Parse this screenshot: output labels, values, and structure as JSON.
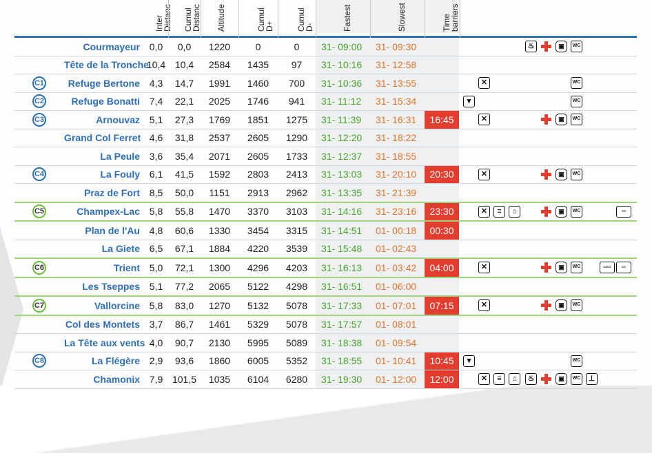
{
  "headers": {
    "inter": "Inter\nDistanc",
    "cumul_dist": "Cumul\nDistanc",
    "altitude": "Altitude",
    "cumul_dplus": "Cumul\nD+",
    "cumul_dminus": "Cumul\nD-",
    "fastest": "Fastest",
    "slowest": "Slowest",
    "barriers": "Time\nbarriers"
  },
  "rows": [
    {
      "cp": "",
      "name": "Courmayeur",
      "inter": "0,0",
      "cumul": "0,0",
      "alt": "1220",
      "dplus": "0",
      "dminus": "0",
      "fast": "31- 09:00",
      "slow": "31- 09:30",
      "barrier": "",
      "green": false,
      "icons": [
        {
          "t": "drink",
          "x": 96,
          "g": "♨"
        },
        {
          "t": "cross",
          "x": 118,
          "g": ""
        },
        {
          "t": "bus",
          "x": 140,
          "g": "▣"
        },
        {
          "t": "wc",
          "x": 162,
          "g": "WC"
        }
      ]
    },
    {
      "cp": "",
      "name": "Tête de la Tronche",
      "inter": "10,4",
      "cumul": "10,4",
      "alt": "2584",
      "dplus": "1435",
      "dminus": "97",
      "fast": "31- 10:16",
      "slow": "31- 12:58",
      "barrier": "",
      "green": false,
      "icons": []
    },
    {
      "cp": "C1",
      "name": "Refuge Bertone",
      "inter": "4,3",
      "cumul": "14,7",
      "alt": "1991",
      "dplus": "1460",
      "dminus": "700",
      "fast": "31- 10:36",
      "slow": "31- 13:55",
      "barrier": "",
      "green": false,
      "icons": [
        {
          "t": "food",
          "x": 28,
          "g": "✕"
        },
        {
          "t": "wc",
          "x": 162,
          "g": "WC"
        }
      ]
    },
    {
      "cp": "C2",
      "name": "Refuge Bonatti",
      "inter": "7,4",
      "cumul": "22,1",
      "alt": "2025",
      "dplus": "1746",
      "dminus": "941",
      "fast": "31- 11:12",
      "slow": "31- 15:34",
      "barrier": "",
      "green": false,
      "icons": [
        {
          "t": "cup",
          "x": 6,
          "g": "▾"
        },
        {
          "t": "wc",
          "x": 162,
          "g": "WC"
        }
      ]
    },
    {
      "cp": "C3",
      "name": "Arnouvaz",
      "inter": "5,1",
      "cumul": "27,3",
      "alt": "1769",
      "dplus": "1851",
      "dminus": "1275",
      "fast": "31- 11:39",
      "slow": "31- 16:31",
      "barrier": "16:45",
      "green": false,
      "icons": [
        {
          "t": "food",
          "x": 28,
          "g": "✕"
        },
        {
          "t": "cross",
          "x": 118,
          "g": ""
        },
        {
          "t": "bus",
          "x": 140,
          "g": "▣"
        },
        {
          "t": "wc",
          "x": 162,
          "g": "WC"
        }
      ]
    },
    {
      "cp": "",
      "name": "Grand Col Ferret",
      "inter": "4,6",
      "cumul": "31,8",
      "alt": "2537",
      "dplus": "2605",
      "dminus": "1290",
      "fast": "31- 12:20",
      "slow": "31- 18:22",
      "barrier": "",
      "green": false,
      "icons": []
    },
    {
      "cp": "",
      "name": "La Peule",
      "inter": "3,6",
      "cumul": "35,4",
      "alt": "2071",
      "dplus": "2605",
      "dminus": "1733",
      "fast": "31- 12:37",
      "slow": "31- 18:55",
      "barrier": "",
      "green": false,
      "icons": []
    },
    {
      "cp": "C4",
      "name": "La Fouly",
      "inter": "6,1",
      "cumul": "41,5",
      "alt": "1592",
      "dplus": "2803",
      "dminus": "2413",
      "fast": "31- 13:03",
      "slow": "31- 20:10",
      "barrier": "20:30",
      "green": false,
      "icons": [
        {
          "t": "food",
          "x": 28,
          "g": "✕"
        },
        {
          "t": "cross",
          "x": 118,
          "g": ""
        },
        {
          "t": "bus",
          "x": 140,
          "g": "▣"
        },
        {
          "t": "wc",
          "x": 162,
          "g": "WC"
        }
      ]
    },
    {
      "cp": "",
      "name": "Praz de Fort",
      "inter": "8,5",
      "cumul": "50,0",
      "alt": "1151",
      "dplus": "2913",
      "dminus": "2962",
      "fast": "31- 13:35",
      "slow": "31- 21:39",
      "barrier": "",
      "green": false,
      "icons": []
    },
    {
      "cp": "C5",
      "name": "Champex-Lac",
      "inter": "5,8",
      "cumul": "55,8",
      "alt": "1470",
      "dplus": "3370",
      "dminus": "3103",
      "fast": "31- 14:16",
      "slow": "31- 23:16",
      "barrier": "23:30",
      "green": true,
      "icons": [
        {
          "t": "food",
          "x": 28,
          "g": "✕"
        },
        {
          "t": "plate",
          "x": 50,
          "g": "≡"
        },
        {
          "t": "tent",
          "x": 72,
          "g": "⌂"
        },
        {
          "t": "cross",
          "x": 118,
          "g": ""
        },
        {
          "t": "bus",
          "x": 140,
          "g": "▣"
        },
        {
          "t": "wc",
          "x": 162,
          "g": "WC"
        },
        {
          "t": "bag",
          "x": 228,
          "g": "▭"
        }
      ]
    },
    {
      "cp": "",
      "name": "Plan de l'Au",
      "inter": "4,8",
      "cumul": "60,6",
      "alt": "1330",
      "dplus": "3454",
      "dminus": "3315",
      "fast": "31- 14:51",
      "slow": "01- 00:18",
      "barrier": "00:30",
      "green": false,
      "icons": []
    },
    {
      "cp": "",
      "name": "La Giete",
      "inter": "6,5",
      "cumul": "67,1",
      "alt": "1884",
      "dplus": "4220",
      "dminus": "3539",
      "fast": "31- 15:48",
      "slow": "01- 02:43",
      "barrier": "",
      "green": false,
      "icons": []
    },
    {
      "cp": "C6",
      "name": "Trient",
      "inter": "5,0",
      "cumul": "72,1",
      "alt": "1300",
      "dplus": "4296",
      "dminus": "4203",
      "fast": "31- 16:13",
      "slow": "01- 03:42",
      "barrier": "04:00",
      "green": true,
      "icons": [
        {
          "t": "food",
          "x": 28,
          "g": "✕"
        },
        {
          "t": "cross",
          "x": 118,
          "g": ""
        },
        {
          "t": "bus",
          "x": 140,
          "g": "▣"
        },
        {
          "t": "wc",
          "x": 162,
          "g": "WC"
        },
        {
          "t": "bagwide",
          "x": 204,
          "g": "▭▭"
        },
        {
          "t": "bag",
          "x": 228,
          "g": "▭"
        }
      ]
    },
    {
      "cp": "",
      "name": "Les Tseppes",
      "inter": "5,1",
      "cumul": "77,2",
      "alt": "2065",
      "dplus": "5122",
      "dminus": "4298",
      "fast": "31- 16:51",
      "slow": "01- 06:00",
      "barrier": "",
      "green": false,
      "icons": []
    },
    {
      "cp": "C7",
      "name": "Vallorcine",
      "inter": "5,8",
      "cumul": "83,0",
      "alt": "1270",
      "dplus": "5132",
      "dminus": "5078",
      "fast": "31- 17:33",
      "slow": "01- 07:01",
      "barrier": "07:15",
      "green": true,
      "icons": [
        {
          "t": "food",
          "x": 28,
          "g": "✕"
        },
        {
          "t": "cross",
          "x": 118,
          "g": ""
        },
        {
          "t": "bus",
          "x": 140,
          "g": "▣"
        },
        {
          "t": "wc",
          "x": 162,
          "g": "WC"
        }
      ]
    },
    {
      "cp": "",
      "name": "Col des Montets",
      "inter": "3,7",
      "cumul": "86,7",
      "alt": "1461",
      "dplus": "5329",
      "dminus": "5078",
      "fast": "31- 17:57",
      "slow": "01- 08:01",
      "barrier": "",
      "green": false,
      "icons": []
    },
    {
      "cp": "",
      "name": "La Tête aux vents",
      "inter": "4,0",
      "cumul": "90,7",
      "alt": "2130",
      "dplus": "5995",
      "dminus": "5089",
      "fast": "31- 18:38",
      "slow": "01- 09:54",
      "barrier": "",
      "green": false,
      "icons": []
    },
    {
      "cp": "C8",
      "name": "La Flégère",
      "inter": "2,9",
      "cumul": "93,6",
      "alt": "1860",
      "dplus": "6005",
      "dminus": "5352",
      "fast": "31- 18:55",
      "slow": "01- 10:41",
      "barrier": "10:45",
      "green": false,
      "icons": [
        {
          "t": "cup",
          "x": 6,
          "g": "▾"
        },
        {
          "t": "wc",
          "x": 162,
          "g": "WC"
        }
      ]
    },
    {
      "cp": "",
      "name": "Chamonix",
      "inter": "7,9",
      "cumul": "101,5",
      "alt": "1035",
      "dplus": "6104",
      "dminus": "6280",
      "fast": "31- 19:30",
      "slow": "01- 12:00",
      "barrier": "12:00",
      "green": false,
      "icons": [
        {
          "t": "food",
          "x": 28,
          "g": "✕"
        },
        {
          "t": "plate",
          "x": 50,
          "g": "≡"
        },
        {
          "t": "tent",
          "x": 72,
          "g": "⌂"
        },
        {
          "t": "drink",
          "x": 96,
          "g": "♨"
        },
        {
          "t": "cross",
          "x": 118,
          "g": ""
        },
        {
          "t": "bus",
          "x": 140,
          "g": "▣"
        },
        {
          "t": "wc",
          "x": 162,
          "g": "WC"
        },
        {
          "t": "shower",
          "x": 184,
          "g": "⊥"
        }
      ]
    }
  ]
}
